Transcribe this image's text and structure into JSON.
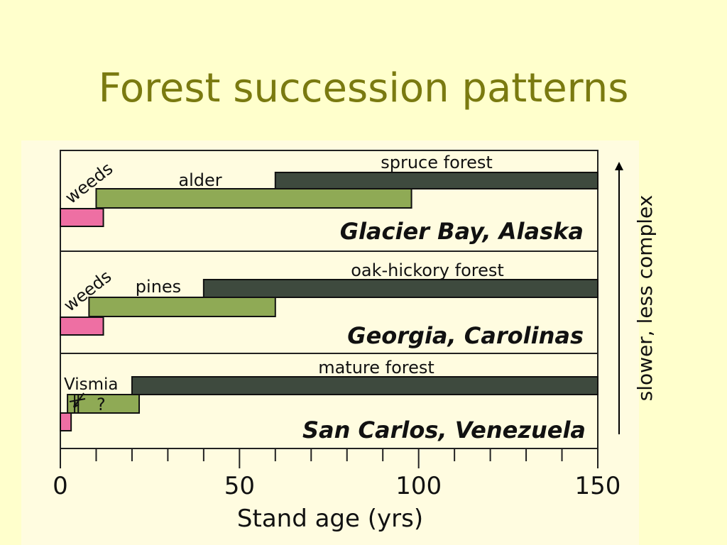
{
  "title": "Forest succession patterns",
  "side_label": "slower, less complex",
  "colors": {
    "background": "#ffffcc",
    "title": "#7a7a10",
    "weeds": "#ee6fa3",
    "pioneer": "#8faa55",
    "forest": "#3e4a3e",
    "panel": "#fffce0"
  },
  "chart_data": {
    "type": "bar",
    "orientation": "horizontal",
    "xlabel": "Stand age (yrs)",
    "xlim": [
      0,
      150
    ],
    "x_ticks": [
      0,
      50,
      100,
      150
    ],
    "x_minor_step": 10,
    "panels": [
      {
        "region": "Glacier Bay, Alaska",
        "bars": [
          {
            "name": "spruce forest",
            "start": 60,
            "end": 150,
            "kind": "forest",
            "label_text": "spruce forest"
          },
          {
            "name": "alder",
            "start": 10,
            "end": 98,
            "kind": "pioneer",
            "label_text": "alder"
          },
          {
            "name": "weeds",
            "start": 0,
            "end": 12,
            "kind": "weeds",
            "label_text": "weeds"
          }
        ]
      },
      {
        "region": "Georgia, Carolinas",
        "bars": [
          {
            "name": "oak-hickory forest",
            "start": 40,
            "end": 150,
            "kind": "forest",
            "label_text": "oak-hickory forest"
          },
          {
            "name": "pines",
            "start": 8,
            "end": 60,
            "kind": "pioneer",
            "label_text": "pines"
          },
          {
            "name": "weeds",
            "start": 0,
            "end": 12,
            "kind": "weeds",
            "label_text": "weeds"
          }
        ]
      },
      {
        "region": "San Carlos, Venezuela",
        "bars": [
          {
            "name": "mature forest",
            "start": 20,
            "end": 150,
            "kind": "forest",
            "label_text": "mature forest"
          },
          {
            "name": "Vismia",
            "start": 2,
            "end": 22,
            "kind": "pioneer",
            "label_text": "Vismia",
            "note": "?"
          },
          {
            "name": "weeds",
            "start": 0,
            "end": 3,
            "kind": "weeds",
            "label_text": ""
          }
        ]
      }
    ]
  }
}
